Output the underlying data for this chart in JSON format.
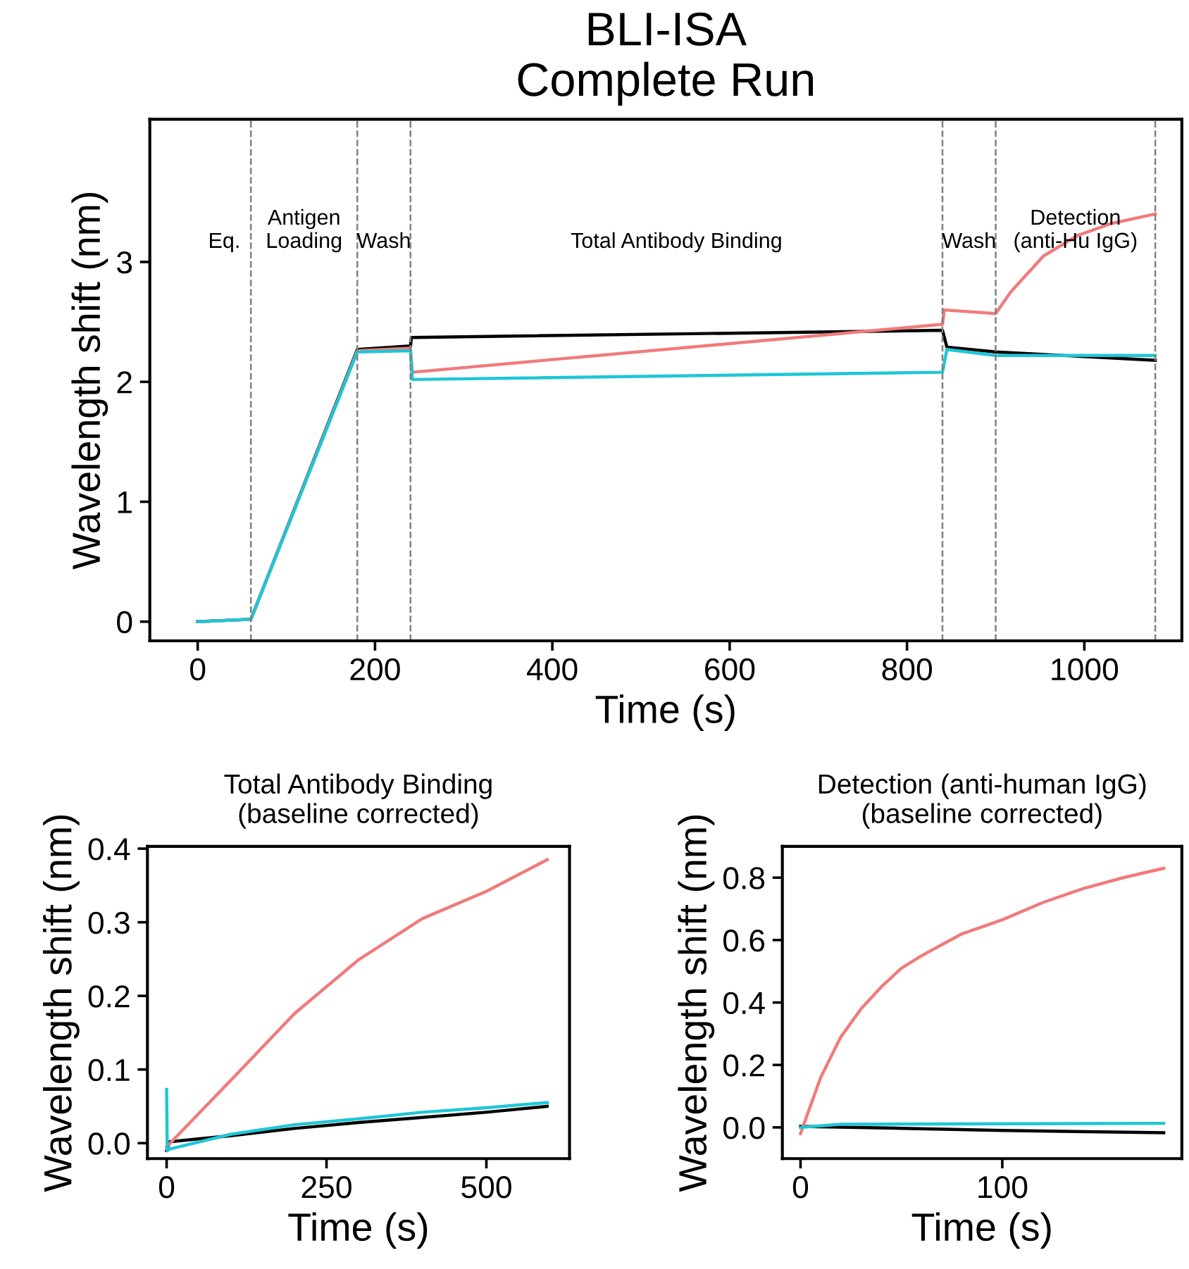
{
  "chart_data": [
    {
      "type": "line",
      "title": "BLI-ISA\nComplete Run",
      "xlabel": "Time (s)",
      "ylabel": "Wavelength shift (nm)",
      "grid": false,
      "legend": false,
      "xlim": [
        -54,
        1110
      ],
      "ylim": [
        -0.16,
        4.19
      ],
      "xticks": [
        0,
        200,
        400,
        600,
        800,
        1000
      ],
      "yticks": [
        0,
        1,
        2,
        3
      ],
      "series": [
        {
          "color": "#000000",
          "x": [
            0,
            60,
            180,
            240,
            241,
            840,
            845,
            900,
            1080
          ],
          "values": [
            0,
            0.02,
            2.27,
            2.3,
            2.37,
            2.43,
            2.29,
            2.25,
            2.18
          ]
        },
        {
          "color": "#f07b7b",
          "x": [
            0,
            60,
            180,
            240,
            242,
            840,
            842,
            900,
            917,
            954,
            992,
            1030,
            1080
          ],
          "values": [
            0,
            0.02,
            2.26,
            2.28,
            2.08,
            2.48,
            2.6,
            2.57,
            2.75,
            3.05,
            3.22,
            3.32,
            3.4
          ]
        },
        {
          "color": "#1fc6d6",
          "x": [
            0,
            60,
            180,
            240,
            242,
            840,
            845,
            900,
            1080
          ],
          "values": [
            0,
            0.02,
            2.25,
            2.26,
            2.02,
            2.08,
            2.27,
            2.22,
            2.22
          ]
        }
      ],
      "ref_lines": [
        {
          "axis": "x",
          "value": 60,
          "color": "#808080",
          "line_style": "dashed"
        },
        {
          "axis": "x",
          "value": 180,
          "color": "#808080",
          "line_style": "dashed"
        },
        {
          "axis": "x",
          "value": 240,
          "color": "#808080",
          "line_style": "dashed"
        },
        {
          "axis": "x",
          "value": 840,
          "color": "#808080",
          "line_style": "dashed"
        },
        {
          "axis": "x",
          "value": 900,
          "color": "#808080",
          "line_style": "dashed"
        },
        {
          "axis": "x",
          "value": 1080,
          "color": "#808080",
          "line_style": "dashed"
        }
      ],
      "annotations": [
        "Eq.",
        "Antigen\nLoading",
        "Wash",
        "Total Antibody Binding",
        "Wash",
        "Detection\n(anti-Hu IgG)"
      ]
    },
    {
      "type": "line",
      "title": "Total Antibody Binding\n(baseline corrected)",
      "xlabel": "Time (s)",
      "ylabel": "Wavelength shift (nm)",
      "grid": false,
      "legend": false,
      "xlim": [
        -30,
        630
      ],
      "ylim": [
        -0.021,
        0.403
      ],
      "xticks": [
        0,
        250,
        500
      ],
      "yticks": [
        {
          "value": 0,
          "label": "0.0"
        },
        {
          "value": 0.1,
          "label": "0.1"
        },
        {
          "value": 0.2,
          "label": "0.2"
        },
        {
          "value": 0.3,
          "label": "0.3"
        },
        {
          "value": 0.4,
          "label": "0.4"
        }
      ],
      "series": [
        {
          "color": "#000000",
          "x": [
            0,
            5,
            100,
            200,
            300,
            400,
            500,
            595
          ],
          "values": [
            -0.01,
            0.002,
            0.01,
            0.02,
            0.028,
            0.035,
            0.042,
            0.05
          ]
        },
        {
          "color": "#f07b7b",
          "x": [
            0,
            100,
            200,
            300,
            400,
            500,
            595
          ],
          "values": [
            -0.005,
            0.085,
            0.176,
            0.249,
            0.305,
            0.342,
            0.385
          ]
        },
        {
          "color": "#1fc6d6",
          "x": [
            0,
            1,
            5,
            100,
            200,
            300,
            400,
            500,
            595
          ],
          "values": [
            0.073,
            -0.01,
            -0.008,
            0.012,
            0.025,
            0.033,
            0.042,
            0.048,
            0.055
          ]
        }
      ]
    },
    {
      "type": "line",
      "title": "Detection (anti-human IgG)\n(baseline corrected)",
      "xlabel": "Time (s)",
      "ylabel": "Wavelength shift (nm)",
      "grid": false,
      "legend": false,
      "xlim": [
        -9,
        189
      ],
      "ylim": [
        -0.1,
        0.9
      ],
      "xticks": [
        0,
        100
      ],
      "yticks": [
        {
          "value": 0,
          "label": "0.0"
        },
        {
          "value": 0.2,
          "label": "0.2"
        },
        {
          "value": 0.4,
          "label": "0.4"
        },
        {
          "value": 0.6,
          "label": "0.6"
        },
        {
          "value": 0.8,
          "label": "0.8"
        }
      ],
      "series": [
        {
          "color": "#000000",
          "x": [
            0,
            50,
            100,
            180
          ],
          "values": [
            0.003,
            -0.003,
            -0.01,
            -0.017
          ]
        },
        {
          "color": "#f07b7b",
          "x": [
            0,
            5,
            10,
            20,
            30,
            40,
            50,
            60,
            80,
            100,
            120,
            140,
            160,
            180
          ],
          "values": [
            -0.02,
            0.07,
            0.16,
            0.29,
            0.38,
            0.45,
            0.51,
            0.55,
            0.62,
            0.665,
            0.72,
            0.765,
            0.8,
            0.83
          ]
        },
        {
          "color": "#1fc6d6",
          "x": [
            0,
            20,
            180
          ],
          "values": [
            0.0,
            0.01,
            0.013
          ]
        }
      ]
    }
  ]
}
